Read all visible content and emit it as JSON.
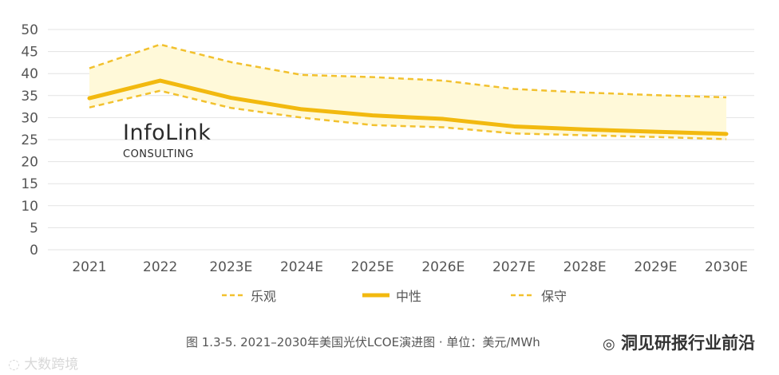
{
  "chart_data": {
    "type": "line",
    "categories": [
      "2021",
      "2022",
      "2023E",
      "2024E",
      "2025E",
      "2026E",
      "2027E",
      "2028E",
      "2029E",
      "2030E"
    ],
    "yticks": [
      0,
      5,
      10,
      15,
      20,
      25,
      30,
      35,
      40,
      45,
      50
    ],
    "ylim": [
      0,
      50
    ],
    "grid": true,
    "series": [
      {
        "name": "乐观",
        "style": "dashed",
        "color": "#f2c12e",
        "values": [
          32.3,
          36.1,
          32.2,
          30.0,
          28.3,
          27.8,
          26.4,
          26.0,
          25.6,
          25.1
        ]
      },
      {
        "name": "中性",
        "style": "solid",
        "color": "#f2b90f",
        "values": [
          34.4,
          38.4,
          34.5,
          31.9,
          30.5,
          29.7,
          28.0,
          27.3,
          26.8,
          26.3
        ]
      },
      {
        "name": "保守",
        "style": "dashed",
        "color": "#f2c12e",
        "values": [
          41.2,
          46.6,
          42.6,
          39.7,
          39.2,
          38.4,
          36.5,
          35.7,
          35.1,
          34.6
        ]
      }
    ],
    "band_color": "#fff9d9",
    "legend_position": "bottom"
  },
  "logo": {
    "main": "InfoLink",
    "sub": "CONSULTING"
  },
  "caption": "图 1.3-5. 2021–2030年美国光伏LCOE演进图 · 单位：美元/MWh",
  "watermark_right": {
    "icon": "wechat-icon",
    "text": "洞见研报行业前沿"
  },
  "watermark_left": {
    "icon": "ring-icon",
    "text": "大数跨境"
  }
}
